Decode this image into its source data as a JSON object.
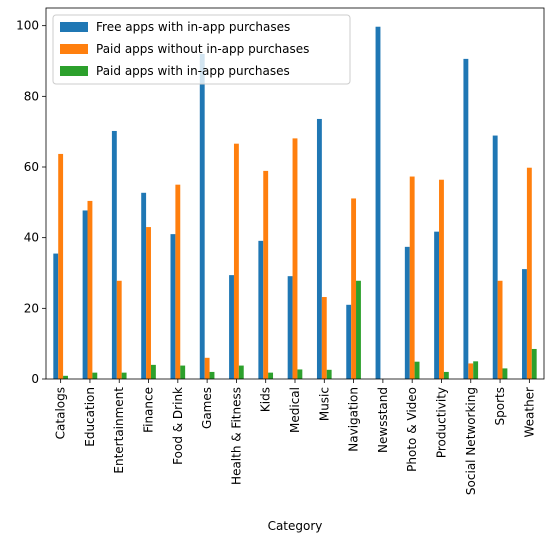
{
  "chart_data": {
    "type": "bar",
    "title": "",
    "xlabel": "Category",
    "ylabel": "",
    "ylim": [
      0,
      105
    ],
    "yticks": [
      0,
      20,
      40,
      60,
      80,
      100
    ],
    "grid": false,
    "legend_position": "upper-left",
    "categories": [
      "Catalogs",
      "Education",
      "Entertainment",
      "Finance",
      "Food & Drink",
      "Games",
      "Health & Fitness",
      "Kids",
      "Medical",
      "Music",
      "Navigation",
      "Newsstand",
      "Photo & Video",
      "Productivity",
      "Social Networking",
      "Sports",
      "Weather"
    ],
    "series": [
      {
        "name": "Free apps with in-app purchases",
        "color": "#1f77b4",
        "values": [
          35.5,
          47.7,
          70.2,
          52.7,
          41.0,
          92.0,
          29.4,
          39.1,
          29.1,
          73.6,
          21.0,
          99.7,
          37.4,
          41.7,
          90.6,
          68.9,
          31.1
        ]
      },
      {
        "name": "Paid apps without in-app purchases",
        "color": "#ff7f0e",
        "values": [
          63.7,
          50.4,
          27.8,
          43.0,
          55.0,
          6.0,
          66.6,
          58.9,
          68.1,
          23.2,
          51.1,
          0.0,
          57.3,
          56.4,
          4.4,
          27.8,
          59.8
        ]
      },
      {
        "name": "Paid apps with in-app purchases",
        "color": "#2ca02c",
        "values": [
          0.9,
          1.8,
          1.8,
          4.0,
          3.8,
          2.0,
          3.8,
          1.8,
          2.7,
          2.6,
          27.8,
          0.0,
          4.9,
          2.0,
          5.0,
          3.0,
          8.5
        ]
      }
    ]
  }
}
